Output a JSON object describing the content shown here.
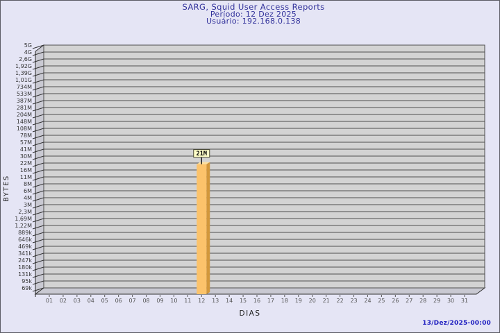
{
  "chart_data": {
    "type": "bar",
    "title": "SARG, Squid User Access Reports",
    "subtitle_period": "Período: 12 Dez 2025",
    "subtitle_user": "Usuário: 192.168.0.138",
    "xlabel": "DIAS",
    "ylabel": "BYTES",
    "x_categories": [
      "01",
      "02",
      "03",
      "04",
      "05",
      "06",
      "07",
      "08",
      "09",
      "10",
      "11",
      "12",
      "13",
      "14",
      "15",
      "16",
      "17",
      "18",
      "19",
      "20",
      "21",
      "22",
      "23",
      "24",
      "25",
      "26",
      "27",
      "28",
      "29",
      "30",
      "31"
    ],
    "y_ticks": [
      "5G",
      "4G",
      "2,6G",
      "1,92G",
      "1,39G",
      "1,01G",
      "734M",
      "533M",
      "387M",
      "281M",
      "204M",
      "148M",
      "108M",
      "78M",
      "57M",
      "41M",
      "30M",
      "22M",
      "16M",
      "11M",
      "8M",
      "6M",
      "4M",
      "3M",
      "2,3M",
      "1,69M",
      "1,22M",
      "889k",
      "646k",
      "469k",
      "341k",
      "247k",
      "180k",
      "131k",
      "95k",
      "69k"
    ],
    "bars": [
      {
        "day": "12",
        "value_label": "21M"
      }
    ],
    "footer_timestamp": "13/Dez/2025-00:00",
    "legend": null,
    "grid": "horizontal",
    "colors": {
      "background": "#E5E5F5",
      "plot_band": "#D3D3D3",
      "grid_line": "#4F4F4F",
      "wall": "#C9C9D2",
      "bar_front": "#FCC36B",
      "bar_side": "#D2973B",
      "bar_top": "#FDE0A1",
      "value_box_bg": "#FFFFC8",
      "value_box_border": "#4A4A33",
      "title_text": "#32329B",
      "timestamp_text": "#2020C0"
    }
  }
}
